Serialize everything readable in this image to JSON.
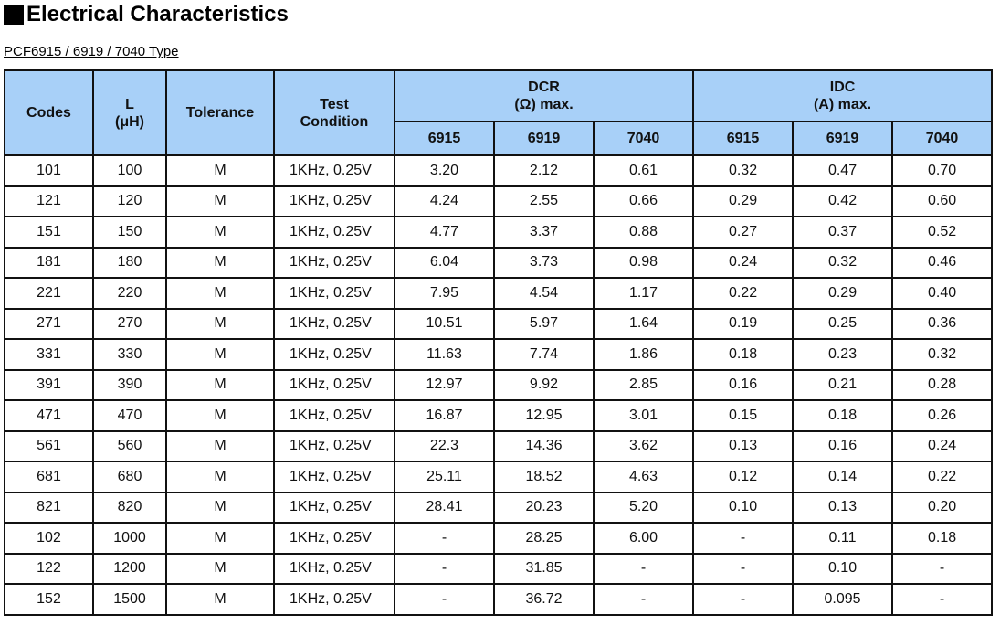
{
  "header": {
    "title": "Electrical Characteristics",
    "subtitle": "PCF6915 / 6919 / 7040 Type"
  },
  "table": {
    "columns": [
      [
        "Codes"
      ],
      [
        "L",
        "(μH)"
      ],
      [
        "Tolerance"
      ],
      [
        "Test",
        "Condition"
      ]
    ],
    "groups": [
      [
        "DCR",
        "(Ω) max."
      ],
      [
        "IDC",
        "(A) max."
      ]
    ],
    "subcolumns": [
      [
        "6915",
        "6919",
        "7040"
      ],
      [
        "6915",
        "6919",
        "7040"
      ]
    ],
    "rows": [
      [
        "101",
        "100",
        "M",
        "1KHz, 0.25V",
        "3.20",
        "2.12",
        "0.61",
        "0.32",
        "0.47",
        "0.70"
      ],
      [
        "121",
        "120",
        "M",
        "1KHz, 0.25V",
        "4.24",
        "2.55",
        "0.66",
        "0.29",
        "0.42",
        "0.60"
      ],
      [
        "151",
        "150",
        "M",
        "1KHz, 0.25V",
        "4.77",
        "3.37",
        "0.88",
        "0.27",
        "0.37",
        "0.52"
      ],
      [
        "181",
        "180",
        "M",
        "1KHz, 0.25V",
        "6.04",
        "3.73",
        "0.98",
        "0.24",
        "0.32",
        "0.46"
      ],
      [
        "221",
        "220",
        "M",
        "1KHz, 0.25V",
        "7.95",
        "4.54",
        "1.17",
        "0.22",
        "0.29",
        "0.40"
      ],
      [
        "271",
        "270",
        "M",
        "1KHz, 0.25V",
        "10.51",
        "5.97",
        "1.64",
        "0.19",
        "0.25",
        "0.36"
      ],
      [
        "331",
        "330",
        "M",
        "1KHz, 0.25V",
        "11.63",
        "7.74",
        "1.86",
        "0.18",
        "0.23",
        "0.32"
      ],
      [
        "391",
        "390",
        "M",
        "1KHz, 0.25V",
        "12.97",
        "9.92",
        "2.85",
        "0.16",
        "0.21",
        "0.28"
      ],
      [
        "471",
        "470",
        "M",
        "1KHz, 0.25V",
        "16.87",
        "12.95",
        "3.01",
        "0.15",
        "0.18",
        "0.26"
      ],
      [
        "561",
        "560",
        "M",
        "1KHz, 0.25V",
        "22.3",
        "14.36",
        "3.62",
        "0.13",
        "0.16",
        "0.24"
      ],
      [
        "681",
        "680",
        "M",
        "1KHz, 0.25V",
        "25.11",
        "18.52",
        "4.63",
        "0.12",
        "0.14",
        "0.22"
      ],
      [
        "821",
        "820",
        "M",
        "1KHz, 0.25V",
        "28.41",
        "20.23",
        "5.20",
        "0.10",
        "0.13",
        "0.20"
      ],
      [
        "102",
        "1000",
        "M",
        "1KHz, 0.25V",
        "-",
        "28.25",
        "6.00",
        "-",
        "0.11",
        "0.18"
      ],
      [
        "122",
        "1200",
        "M",
        "1KHz, 0.25V",
        "-",
        "31.85",
        "-",
        "-",
        "0.10",
        "-"
      ],
      [
        "152",
        "1500",
        "M",
        "1KHz, 0.25V",
        "-",
        "36.72",
        "-",
        "-",
        "0.095",
        "-"
      ]
    ]
  }
}
